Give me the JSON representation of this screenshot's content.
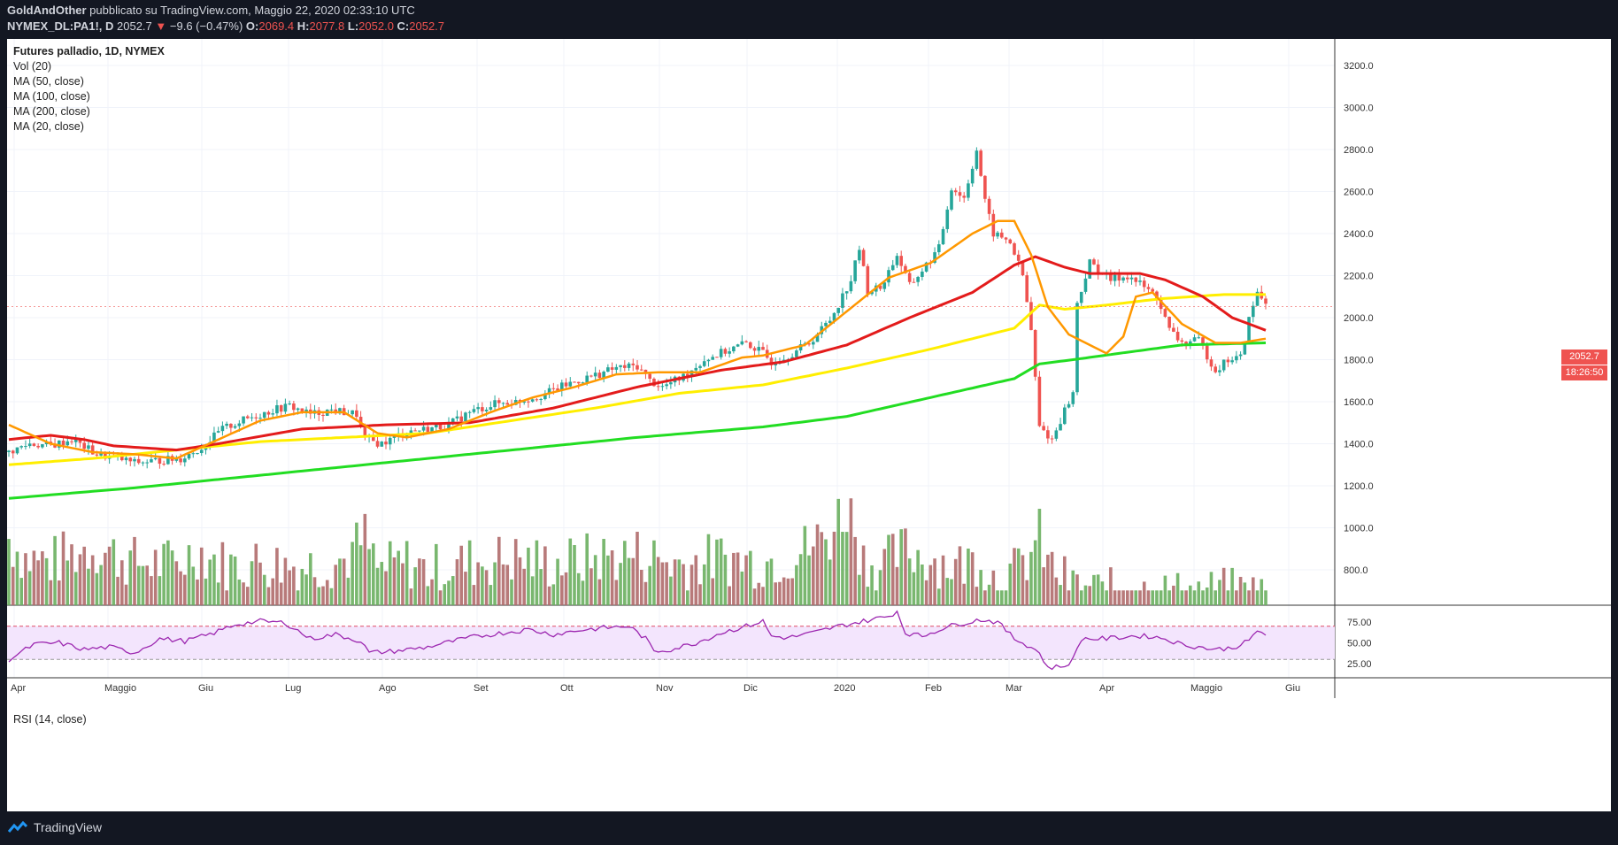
{
  "header": {
    "author": "GoldAndOther",
    "published": "pubblicato su TradingView.com, Maggio 22, 2020 02:33:10 UTC",
    "symbol": "NYMEX_DL:PA1!, D",
    "last": "2052.7",
    "change": "−9.6 (−0.47%)",
    "o_label": "O:",
    "o": "2069.4",
    "h_label": "H:",
    "h": "2077.8",
    "l_label": "L:",
    "l": "2052.0",
    "c_label": "C:",
    "c": "2052.7"
  },
  "legend": {
    "title": "Futures palladio, 1D, NYMEX",
    "vol": "Vol (20)",
    "ma50": "MA (50, close)",
    "ma100": "MA (100, close)",
    "ma200": "MA (200, close)",
    "ma20": "MA (20, close)"
  },
  "rsi_label": "RSI (14, close)",
  "price_badge": "2052.7",
  "time_badge": "18:26:50",
  "footer": {
    "brand": "TradingView"
  },
  "colors": {
    "bg": "#131722",
    "up": "#26a69a",
    "down": "#ef5350",
    "ma20": "#ff9800",
    "ma50": "#e31b1b",
    "ma100": "#ffee00",
    "ma200": "#22dd22",
    "vol_up": "#6aaf5f",
    "vol_down": "#b06b6b",
    "rsi": "#9c27b0"
  },
  "chart_data": {
    "type": "candlestick",
    "price_axis": {
      "min": 700,
      "max": 3300,
      "ticks": [
        800,
        1000,
        1200,
        1400,
        1600,
        1800,
        2000,
        2200,
        2400,
        2600,
        2800,
        3000,
        3200
      ]
    },
    "x_labels": [
      "Apr",
      "Maggio",
      "Giu",
      "Lug",
      "Ago",
      "Set",
      "Ott",
      "Nov",
      "Dic",
      "2020",
      "Feb",
      "Mar",
      "Apr",
      "Maggio",
      "Giu"
    ],
    "rsi_axis": {
      "ticks": [
        25.0,
        50.0,
        75.0
      ],
      "overbought": 70,
      "oversold": 30
    },
    "price_anchors": [
      [
        0,
        1360
      ],
      [
        5,
        1400
      ],
      [
        10,
        1390
      ],
      [
        15,
        1420
      ],
      [
        21,
        1350
      ],
      [
        26,
        1330
      ],
      [
        30,
        1310
      ],
      [
        36,
        1320
      ],
      [
        41,
        1330
      ],
      [
        46,
        1380
      ],
      [
        51,
        1470
      ],
      [
        57,
        1520
      ],
      [
        63,
        1560
      ],
      [
        67,
        1580
      ],
      [
        72,
        1540
      ],
      [
        77,
        1560
      ],
      [
        83,
        1540
      ],
      [
        85,
        1420
      ],
      [
        89,
        1400
      ],
      [
        95,
        1460
      ],
      [
        100,
        1470
      ],
      [
        105,
        1490
      ],
      [
        110,
        1550
      ],
      [
        116,
        1590
      ],
      [
        121,
        1600
      ],
      [
        127,
        1630
      ],
      [
        133,
        1680
      ],
      [
        139,
        1720
      ],
      [
        145,
        1760
      ],
      [
        150,
        1770
      ],
      [
        153,
        1700
      ],
      [
        156,
        1670
      ],
      [
        161,
        1720
      ],
      [
        166,
        1800
      ],
      [
        171,
        1840
      ],
      [
        176,
        1880
      ],
      [
        180,
        1830
      ],
      [
        182,
        1790
      ],
      [
        186,
        1820
      ],
      [
        191,
        1880
      ],
      [
        196,
        1990
      ],
      [
        201,
        2180
      ],
      [
        203,
        2330
      ],
      [
        205,
        2130
      ],
      [
        208,
        2140
      ],
      [
        212,
        2300
      ],
      [
        215,
        2150
      ],
      [
        219,
        2250
      ],
      [
        222,
        2330
      ],
      [
        225,
        2620
      ],
      [
        228,
        2570
      ],
      [
        231,
        2800
      ],
      [
        233,
        2550
      ],
      [
        235,
        2400
      ],
      [
        239,
        2360
      ],
      [
        242,
        2200
      ],
      [
        244,
        1940
      ],
      [
        246,
        1480
      ],
      [
        249,
        1420
      ],
      [
        252,
        1560
      ],
      [
        254,
        1640
      ],
      [
        255,
        2070
      ],
      [
        258,
        2260
      ],
      [
        263,
        2180
      ],
      [
        267,
        2200
      ],
      [
        270,
        2160
      ],
      [
        274,
        2100
      ],
      [
        277,
        1940
      ],
      [
        280,
        1880
      ],
      [
        284,
        1890
      ],
      [
        288,
        1750
      ],
      [
        291,
        1800
      ],
      [
        294,
        1810
      ],
      [
        296,
        1990
      ],
      [
        298,
        2120
      ],
      [
        300,
        2070
      ]
    ],
    "ma20_anchors": [
      [
        0,
        1490
      ],
      [
        10,
        1400
      ],
      [
        20,
        1360
      ],
      [
        30,
        1350
      ],
      [
        40,
        1330
      ],
      [
        50,
        1420
      ],
      [
        60,
        1510
      ],
      [
        70,
        1550
      ],
      [
        80,
        1550
      ],
      [
        88,
        1450
      ],
      [
        95,
        1430
      ],
      [
        105,
        1470
      ],
      [
        115,
        1550
      ],
      [
        125,
        1620
      ],
      [
        135,
        1670
      ],
      [
        145,
        1730
      ],
      [
        155,
        1740
      ],
      [
        165,
        1740
      ],
      [
        175,
        1810
      ],
      [
        180,
        1820
      ],
      [
        190,
        1870
      ],
      [
        200,
        2030
      ],
      [
        210,
        2190
      ],
      [
        220,
        2260
      ],
      [
        230,
        2400
      ],
      [
        236,
        2460
      ],
      [
        240,
        2460
      ],
      [
        244,
        2300
      ],
      [
        248,
        2050
      ],
      [
        253,
        1920
      ],
      [
        258,
        1870
      ],
      [
        262,
        1830
      ],
      [
        266,
        1910
      ],
      [
        269,
        2100
      ],
      [
        273,
        2120
      ],
      [
        280,
        1970
      ],
      [
        288,
        1880
      ],
      [
        294,
        1880
      ],
      [
        300,
        1900
      ]
    ],
    "ma50_anchors": [
      [
        0,
        1420
      ],
      [
        10,
        1440
      ],
      [
        18,
        1420
      ],
      [
        25,
        1390
      ],
      [
        40,
        1370
      ],
      [
        50,
        1400
      ],
      [
        70,
        1470
      ],
      [
        90,
        1490
      ],
      [
        110,
        1500
      ],
      [
        130,
        1570
      ],
      [
        150,
        1670
      ],
      [
        170,
        1750
      ],
      [
        185,
        1790
      ],
      [
        200,
        1870
      ],
      [
        215,
        2000
      ],
      [
        230,
        2120
      ],
      [
        240,
        2250
      ],
      [
        245,
        2290
      ],
      [
        252,
        2240
      ],
      [
        258,
        2210
      ],
      [
        270,
        2210
      ],
      [
        276,
        2180
      ],
      [
        285,
        2100
      ],
      [
        292,
        2000
      ],
      [
        300,
        1940
      ]
    ],
    "ma100_anchors": [
      [
        0,
        1300
      ],
      [
        20,
        1330
      ],
      [
        40,
        1370
      ],
      [
        60,
        1410
      ],
      [
        80,
        1430
      ],
      [
        100,
        1450
      ],
      [
        120,
        1510
      ],
      [
        140,
        1570
      ],
      [
        160,
        1640
      ],
      [
        180,
        1680
      ],
      [
        200,
        1760
      ],
      [
        220,
        1850
      ],
      [
        240,
        1950
      ],
      [
        246,
        2060
      ],
      [
        252,
        2040
      ],
      [
        262,
        2060
      ],
      [
        275,
        2090
      ],
      [
        290,
        2110
      ],
      [
        300,
        2110
      ]
    ],
    "ma200_anchors": [
      [
        0,
        1140
      ],
      [
        30,
        1190
      ],
      [
        60,
        1250
      ],
      [
        90,
        1310
      ],
      [
        120,
        1370
      ],
      [
        150,
        1430
      ],
      [
        180,
        1480
      ],
      [
        200,
        1530
      ],
      [
        220,
        1620
      ],
      [
        240,
        1710
      ],
      [
        246,
        1780
      ],
      [
        254,
        1800
      ],
      [
        265,
        1830
      ],
      [
        280,
        1870
      ],
      [
        300,
        1880
      ]
    ],
    "rsi_anchors": [
      [
        0,
        30
      ],
      [
        6,
        48
      ],
      [
        12,
        50
      ],
      [
        18,
        42
      ],
      [
        24,
        45
      ],
      [
        30,
        38
      ],
      [
        36,
        55
      ],
      [
        42,
        52
      ],
      [
        48,
        60
      ],
      [
        54,
        72
      ],
      [
        60,
        76
      ],
      [
        66,
        74
      ],
      [
        72,
        55
      ],
      [
        78,
        60
      ],
      [
        84,
        52
      ],
      [
        86,
        38
      ],
      [
        92,
        40
      ],
      [
        100,
        45
      ],
      [
        106,
        52
      ],
      [
        112,
        58
      ],
      [
        118,
        62
      ],
      [
        124,
        66
      ],
      [
        130,
        60
      ],
      [
        136,
        65
      ],
      [
        142,
        68
      ],
      [
        148,
        70
      ],
      [
        152,
        55
      ],
      [
        154,
        40
      ],
      [
        158,
        42
      ],
      [
        164,
        50
      ],
      [
        170,
        62
      ],
      [
        176,
        70
      ],
      [
        180,
        76
      ],
      [
        182,
        58
      ],
      [
        186,
        56
      ],
      [
        192,
        62
      ],
      [
        198,
        70
      ],
      [
        204,
        76
      ],
      [
        210,
        82
      ],
      [
        212,
        88
      ],
      [
        214,
        62
      ],
      [
        218,
        58
      ],
      [
        222,
        66
      ],
      [
        226,
        72
      ],
      [
        232,
        78
      ],
      [
        236,
        75
      ],
      [
        240,
        55
      ],
      [
        244,
        45
      ],
      [
        246,
        38
      ],
      [
        248,
        20
      ],
      [
        252,
        22
      ],
      [
        254,
        30
      ],
      [
        256,
        55
      ],
      [
        262,
        55
      ],
      [
        268,
        58
      ],
      [
        272,
        58
      ],
      [
        276,
        55
      ],
      [
        280,
        48
      ],
      [
        284,
        45
      ],
      [
        288,
        42
      ],
      [
        292,
        44
      ],
      [
        296,
        52
      ],
      [
        298,
        65
      ],
      [
        300,
        60
      ]
    ],
    "vol_anchors": [
      [
        0,
        1000
      ],
      [
        4,
        900
      ],
      [
        10,
        880
      ],
      [
        20,
        960
      ],
      [
        30,
        880
      ],
      [
        40,
        870
      ],
      [
        45,
        940
      ],
      [
        52,
        860
      ],
      [
        60,
        880
      ],
      [
        70,
        860
      ],
      [
        80,
        890
      ],
      [
        85,
        1000
      ],
      [
        88,
        840
      ],
      [
        95,
        880
      ],
      [
        100,
        840
      ],
      [
        110,
        880
      ],
      [
        120,
        900
      ],
      [
        130,
        870
      ],
      [
        140,
        900
      ],
      [
        150,
        920
      ],
      [
        160,
        870
      ],
      [
        170,
        900
      ],
      [
        180,
        880
      ],
      [
        188,
        920
      ],
      [
        196,
        1020
      ],
      [
        200,
        1180
      ],
      [
        204,
        900
      ],
      [
        208,
        860
      ],
      [
        214,
        940
      ],
      [
        220,
        900
      ],
      [
        226,
        860
      ],
      [
        232,
        900
      ],
      [
        236,
        780
      ],
      [
        242,
        860
      ],
      [
        246,
        1000
      ],
      [
        248,
        870
      ],
      [
        254,
        760
      ],
      [
        260,
        740
      ],
      [
        270,
        740
      ],
      [
        280,
        730
      ],
      [
        290,
        740
      ],
      [
        296,
        740
      ],
      [
        300,
        720
      ]
    ]
  }
}
